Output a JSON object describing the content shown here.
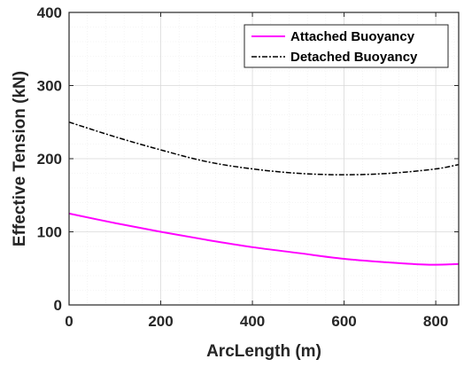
{
  "chart_data": {
    "type": "line",
    "xlabel": "ArcLength (m)",
    "ylabel": "Effective Tension (kN)",
    "xlim": [
      0,
      850
    ],
    "ylim": [
      0,
      400
    ],
    "xticks": [
      0,
      200,
      400,
      600,
      800
    ],
    "yticks": [
      0,
      100,
      200,
      300,
      400
    ],
    "grid": true,
    "legend_position": "top-right",
    "series": [
      {
        "name": "Attached Buoyancy",
        "color": "#ff00ff",
        "style": "solid",
        "x": [
          0,
          100,
          200,
          300,
          400,
          500,
          600,
          700,
          750,
          800,
          850
        ],
        "y": [
          125,
          112,
          100,
          89,
          79,
          71,
          63,
          58,
          56,
          55,
          56
        ]
      },
      {
        "name": "Detached Buoyancy",
        "color": "#000000",
        "style": "dashdot",
        "x": [
          0,
          100,
          200,
          300,
          400,
          500,
          600,
          700,
          800,
          850
        ],
        "y": [
          250,
          230,
          212,
          196,
          186,
          180,
          178,
          180,
          186,
          192
        ]
      }
    ]
  }
}
